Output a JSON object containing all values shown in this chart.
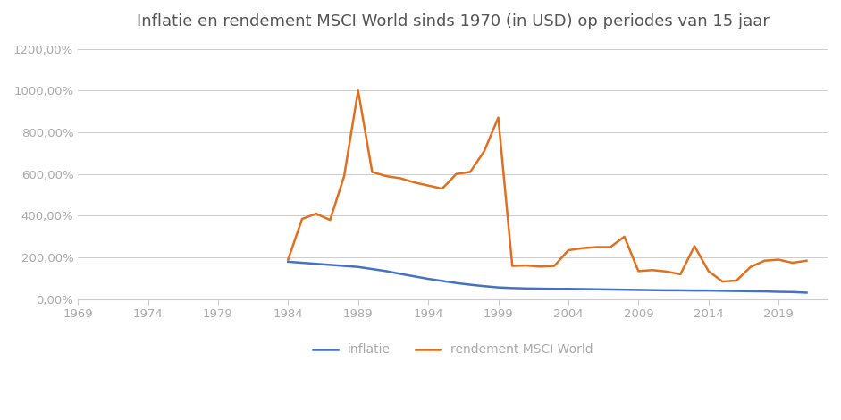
{
  "title": "Inflatie en rendement MSCI World sinds 1970 (in USD) op periodes van 15 jaar",
  "inflatie_x": [
    1984,
    1985,
    1986,
    1987,
    1988,
    1989,
    1990,
    1991,
    1992,
    1993,
    1994,
    1995,
    1996,
    1997,
    1998,
    1999,
    2000,
    2001,
    2002,
    2003,
    2004,
    2005,
    2006,
    2007,
    2008,
    2009,
    2010,
    2011,
    2012,
    2013,
    2014,
    2015,
    2016,
    2017,
    2018,
    2019,
    2020,
    2021
  ],
  "inflatie_y": [
    180,
    175,
    170,
    165,
    160,
    155,
    145,
    135,
    122,
    110,
    98,
    88,
    78,
    70,
    63,
    57,
    54,
    52,
    51,
    50,
    50,
    49,
    48,
    47,
    46,
    45,
    44,
    43,
    43,
    42,
    42,
    41,
    40,
    39,
    38,
    36,
    35,
    32
  ],
  "msci_x": [
    1984,
    1985,
    1986,
    1987,
    1988,
    1989,
    1990,
    1991,
    1992,
    1993,
    1994,
    1995,
    1996,
    1997,
    1998,
    1999,
    2000,
    2001,
    2002,
    2003,
    2004,
    2005,
    2006,
    2007,
    2008,
    2009,
    2010,
    2011,
    2012,
    2013,
    2014,
    2015,
    2016,
    2017,
    2018,
    2019,
    2020,
    2021
  ],
  "msci_y": [
    190,
    385,
    410,
    380,
    590,
    1000,
    610,
    590,
    580,
    560,
    545,
    530,
    600,
    610,
    710,
    870,
    160,
    162,
    157,
    160,
    235,
    245,
    250,
    250,
    300,
    135,
    140,
    133,
    120,
    255,
    135,
    85,
    90,
    155,
    185,
    190,
    175,
    185
  ],
  "inflatie_label": "inflatie",
  "msci_label": "rendement MSCI World",
  "inflatie_color": "#4472C4",
  "msci_color": "#E07020",
  "xlim": [
    1969,
    2022.5
  ],
  "ylim": [
    0,
    1250
  ],
  "xticks": [
    1969,
    1974,
    1979,
    1984,
    1989,
    1994,
    1999,
    2004,
    2009,
    2014,
    2019
  ],
  "yticks": [
    0,
    200,
    400,
    600,
    800,
    1000,
    1200
  ],
  "ytick_labels": [
    "0,00%",
    "200,00%",
    "400,00%",
    "600,00%",
    "800,00%",
    "1000,00%",
    "1200,00%"
  ],
  "background_color": "#ffffff",
  "grid_color": "#cccccc",
  "text_color": "#aaaaaa",
  "title_color": "#555555",
  "title_fontsize": 13,
  "tick_fontsize": 9.5,
  "legend_fontsize": 10,
  "line_width": 1.8
}
